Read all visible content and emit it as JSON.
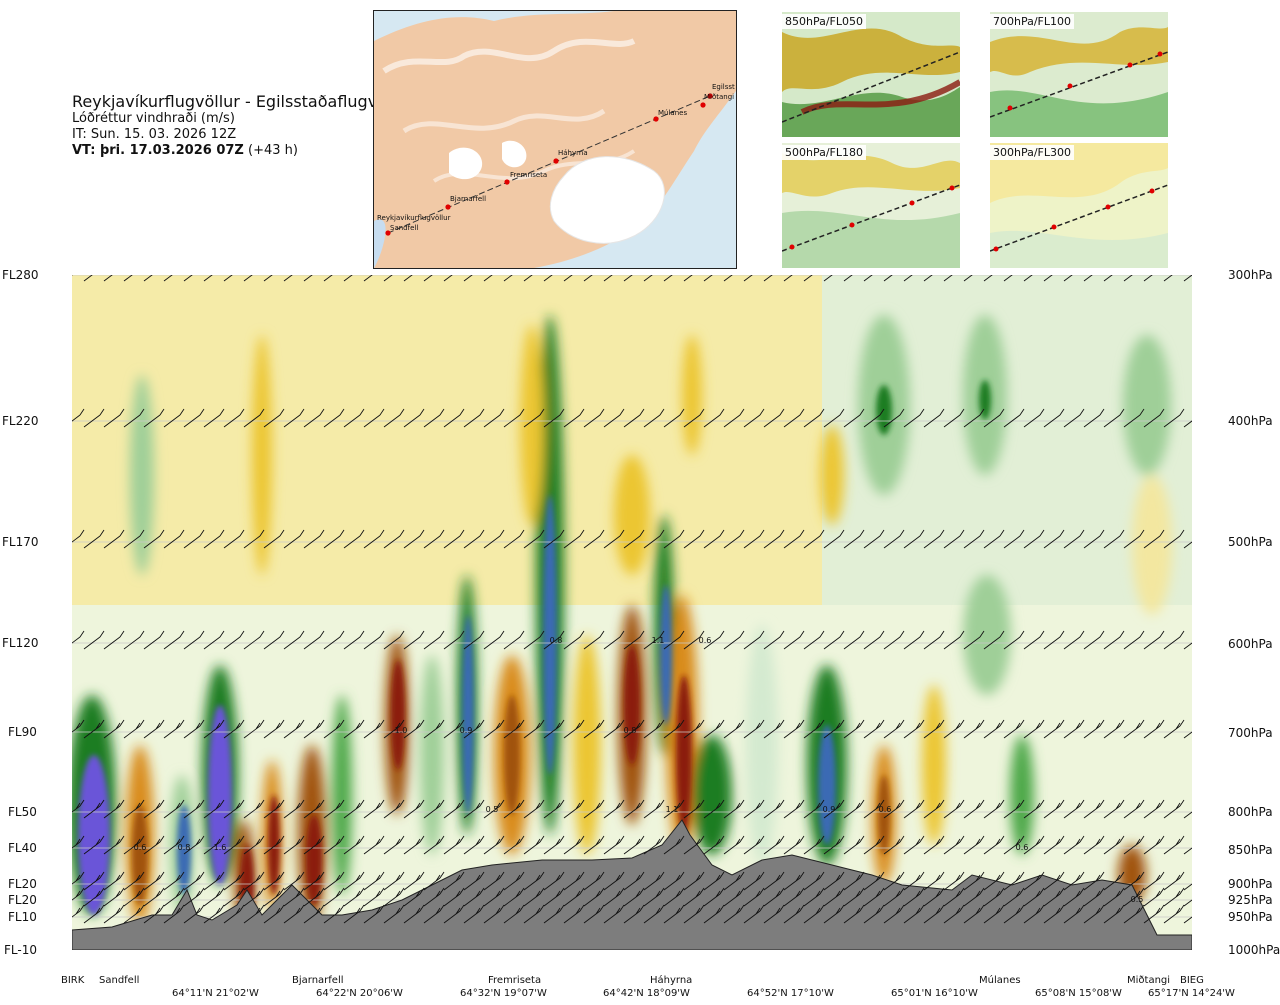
{
  "header": {
    "route": "Reykjavíkurflugvöllur - Egilsstaðaflugvöllur",
    "parameter": "Lóðréttur vindhraði (m/s)",
    "issue_time": "IT: Sun. 15. 03. 2026 12Z",
    "valid_time": "VT: þri. 17.03.2026 07Z",
    "lead": " (+43 h)"
  },
  "route_map": {
    "places": [
      "Reykjavíkurflugvöllur",
      "Sandfell",
      "Bjarnarfell",
      "Fremriseta",
      "Háhyrna",
      "Múlanes",
      "Miðtangi",
      "Egilsst"
    ]
  },
  "thumbnails": [
    {
      "label": "850hPa/FL050"
    },
    {
      "label": "700hPa/FL100"
    },
    {
      "label": "500hPa/FL180"
    },
    {
      "label": "300hPa/FL300"
    }
  ],
  "flight_levels": [
    "FL280",
    "FL220",
    "FL170",
    "FL120",
    "FL90",
    "FL50",
    "FL40",
    "FL20",
    "FL20",
    "FL10",
    "FL-10"
  ],
  "pressure_levels": [
    "300hPa",
    "400hPa",
    "500hPa",
    "600hPa",
    "700hPa",
    "800hPa",
    "850hPa",
    "900hPa",
    "925hPa",
    "950hPa",
    "1000hPa"
  ],
  "waypoints": [
    "BIRK",
    "Sandfell",
    "Bjarnarfell",
    "Fremriseta",
    "Háhyrna",
    "Múlanes",
    "Miðtangi",
    "BIEG"
  ],
  "coordinates": [
    "64°11'N 21°02'W",
    "64°22'N 20°06'W",
    "64°32'N 19°07'W",
    "64°42'N 18°09'W",
    "64°52'N 17°10'W",
    "65°01'N 16°10'W",
    "65°08'N 15°08'W",
    "65°17'N 14°24'W"
  ],
  "chart_data": {
    "type": "heatmap",
    "title": "Lóðréttur vindhraði (m/s)",
    "xlabel": "",
    "ylabel": "",
    "y_pressure_hpa": [
      300,
      400,
      500,
      600,
      700,
      800,
      850,
      900,
      925,
      950,
      1000
    ],
    "y_flight_levels": [
      "FL280",
      "FL220",
      "FL170",
      "FL120",
      "FL90",
      "FL50",
      "FL40",
      "FL20",
      "FL20",
      "FL10",
      "FL-10"
    ],
    "x_waypoints": [
      "BIRK",
      "Sandfell",
      "Bjarnarfell",
      "Fremriseta",
      "Háhyrna",
      "Múlanes",
      "Miðtangi",
      "BIEG"
    ],
    "contour_labels": [
      "0.6",
      "0.8",
      "1.6",
      "1.0",
      "0.9",
      "0.5",
      "0.8",
      "0.8",
      "1.1",
      "0.6",
      "1.1",
      "0.9",
      "0.6",
      "0.6",
      "0.5"
    ],
    "colors": {
      "strong_down": "#8b1a10",
      "down": "#a0520f",
      "moderate_down": "#d98c1e",
      "weak_down": "#ecc630",
      "slight_down": "#f3e7a0",
      "neutral": "#f5f5dc",
      "slight_up": "#d4ead0",
      "weak_up": "#9fcf98",
      "moderate_up": "#4ea84a",
      "up": "#1a7d23",
      "strong_up": "#3a6ab4",
      "very_strong_up": "#6a55d8",
      "terrain": "#7d7d7d"
    },
    "grid": true
  }
}
